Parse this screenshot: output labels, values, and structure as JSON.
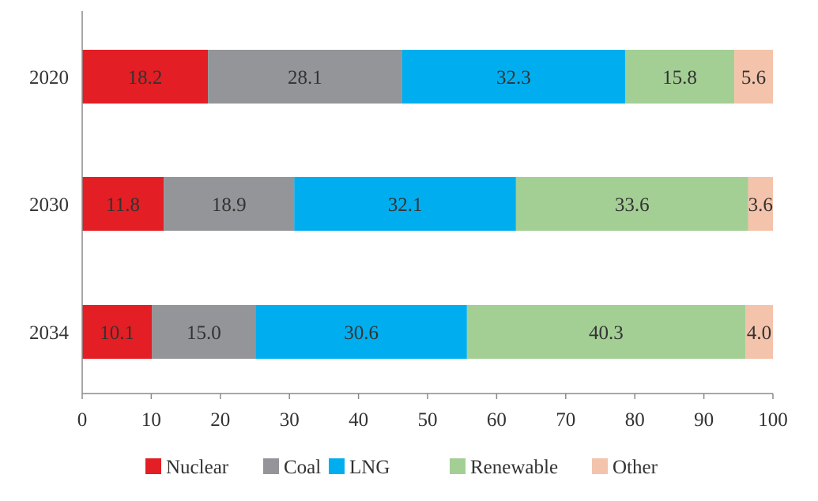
{
  "chart_data": {
    "type": "bar",
    "orientation": "horizontal",
    "stacked": true,
    "categories": [
      "2020",
      "2030",
      "2034"
    ],
    "series": [
      {
        "name": "Nuclear",
        "color": "#e31e24",
        "values": [
          18.2,
          11.8,
          10.1
        ]
      },
      {
        "name": "Coal",
        "color": "#939598",
        "values": [
          28.1,
          18.9,
          15.0
        ]
      },
      {
        "name": "LNG",
        "color": "#00aeef",
        "values": [
          32.3,
          32.1,
          30.6
        ]
      },
      {
        "name": "Renewable",
        "color": "#a3cf95",
        "values": [
          15.8,
          33.6,
          40.3
        ]
      },
      {
        "name": "Other",
        "color": "#f4c3ab",
        "values": [
          5.6,
          3.6,
          4.0
        ]
      }
    ],
    "value_labels": [
      [
        "18.2",
        "11.8",
        "10.1"
      ],
      [
        "28.1",
        "18.9",
        "15.0"
      ],
      [
        "32.3",
        "32.1",
        "30.6"
      ],
      [
        "15.8",
        "33.6",
        "40.3"
      ],
      [
        "5.6",
        "3.6",
        "4.0"
      ]
    ],
    "xlim": [
      0,
      100
    ],
    "xticks": [
      "0",
      "10",
      "20",
      "30",
      "40",
      "50",
      "60",
      "70",
      "80",
      "90",
      "100"
    ],
    "title": "",
    "xlabel": "",
    "ylabel": "",
    "grid": false,
    "legend_position": "bottom"
  }
}
